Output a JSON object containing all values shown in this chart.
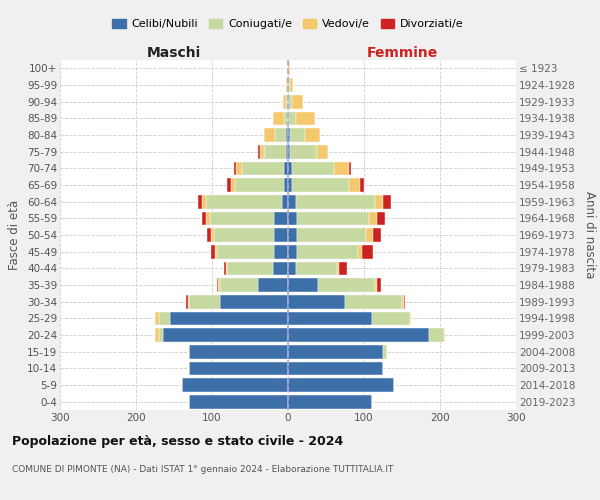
{
  "age_groups": [
    "0-4",
    "5-9",
    "10-14",
    "15-19",
    "20-24",
    "25-29",
    "30-34",
    "35-39",
    "40-44",
    "45-49",
    "50-54",
    "55-59",
    "60-64",
    "65-69",
    "70-74",
    "75-79",
    "80-84",
    "85-89",
    "90-94",
    "95-99",
    "100+"
  ],
  "birth_years": [
    "2019-2023",
    "2014-2018",
    "2009-2013",
    "2004-2008",
    "1999-2003",
    "1994-1998",
    "1989-1993",
    "1984-1988",
    "1979-1983",
    "1974-1978",
    "1969-1973",
    "1964-1968",
    "1959-1963",
    "1954-1958",
    "1949-1953",
    "1944-1948",
    "1939-1943",
    "1934-1938",
    "1929-1933",
    "1924-1928",
    "≤ 1923"
  ],
  "colors": {
    "celibi": "#3d6fa8",
    "coniugati": "#c5d9a0",
    "vedovi": "#f5c86e",
    "divorziati": "#cc2222"
  },
  "maschi": {
    "celibi": [
      130,
      140,
      130,
      130,
      165,
      155,
      90,
      40,
      20,
      18,
      18,
      18,
      8,
      5,
      5,
      2,
      2,
      0,
      0,
      0,
      0
    ],
    "coniugati": [
      0,
      0,
      0,
      0,
      5,
      15,
      40,
      50,
      60,
      75,
      80,
      85,
      100,
      65,
      55,
      30,
      15,
      5,
      2,
      0,
      0
    ],
    "vedovi": [
      0,
      0,
      0,
      0,
      5,
      5,
      2,
      2,
      2,
      3,
      3,
      5,
      5,
      5,
      8,
      5,
      15,
      15,
      5,
      2,
      0
    ],
    "divorziati": [
      0,
      0,
      0,
      0,
      0,
      0,
      2,
      2,
      2,
      5,
      5,
      5,
      5,
      5,
      3,
      3,
      0,
      0,
      0,
      0,
      0
    ]
  },
  "femmine": {
    "celibi": [
      110,
      140,
      125,
      125,
      185,
      110,
      75,
      40,
      10,
      12,
      12,
      12,
      10,
      5,
      5,
      3,
      2,
      0,
      0,
      0,
      0
    ],
    "coniugati": [
      0,
      0,
      0,
      5,
      20,
      50,
      75,
      75,
      55,
      80,
      90,
      95,
      105,
      75,
      55,
      35,
      20,
      10,
      5,
      2,
      0
    ],
    "vedovi": [
      0,
      0,
      0,
      0,
      2,
      2,
      2,
      2,
      2,
      5,
      10,
      10,
      10,
      15,
      20,
      15,
      20,
      25,
      15,
      5,
      2
    ],
    "divorziati": [
      0,
      0,
      0,
      0,
      0,
      0,
      2,
      5,
      10,
      15,
      10,
      10,
      10,
      5,
      3,
      0,
      0,
      0,
      0,
      0,
      0
    ]
  },
  "xlim": 300,
  "title": "Popolazione per età, sesso e stato civile - 2024",
  "subtitle": "COMUNE DI PIMONTE (NA) - Dati ISTAT 1° gennaio 2024 - Elaborazione TUTTITALIA.IT",
  "xlabel_left": "Maschi",
  "xlabel_right": "Femmine",
  "ylabel_left": "Fasce di età",
  "ylabel_right": "Anni di nascita",
  "bg_color": "#f0f0f0",
  "plot_bg_color": "#ffffff",
  "grid_color": "#cccccc",
  "xticks": [
    -300,
    -200,
    -100,
    0,
    100,
    200,
    300
  ]
}
